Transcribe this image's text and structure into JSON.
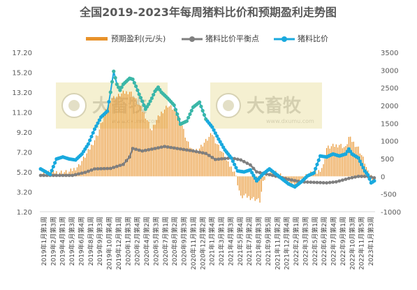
{
  "chart_data": {
    "type": "bar",
    "title": "全国2019-2023年每周猪料比价和预期盈利走势图",
    "legend": [
      "预期盈利(元/头)",
      "猪料比价平衡点",
      "猪料比价"
    ],
    "legend_placement": "top-center",
    "watermark": "大畜牧 www.dxumu.com",
    "left_axis": {
      "ticks": [
        "17.20",
        "15.20",
        "13.20",
        "11.20",
        "9.20",
        "7.20",
        "5.20",
        "3.20",
        "1.20"
      ],
      "range": [
        1.2,
        17.2
      ]
    },
    "right_axis": {
      "ticks": [
        "3500",
        "3000",
        "2500",
        "2000",
        "1500",
        "1000",
        "500",
        "0",
        "-500",
        "-1000"
      ],
      "range": [
        -1000,
        3500
      ]
    },
    "x_ticks": [
      "2019年1月第1周",
      "2019年2月第3周",
      "2019年4月第1周",
      "2019年5月第3周",
      "2019年6月第4周",
      "2019年8月第1周",
      "2019年9月第3周",
      "2019年10月第4周",
      "2019年12月第1周",
      "2020年1月第3周",
      "2020年2月第4周",
      "2020年4月第2周",
      "2020年5月第3周",
      "2020年7月第1周",
      "2020年8月第2周",
      "2020年9月第3周",
      "2020年11月第1周",
      "2020年12月第2周",
      "2021年1月第4周",
      "2021年3月第1周",
      "2021年4月第3周",
      "2021年5月第4周",
      "2021年7月第2周",
      "2021年8月第3周",
      "2021年9月第5周",
      "2021年11月第2周",
      "2021年12月第4周",
      "2022年2月第1周",
      "2022年3月第3周",
      "2022年5月第1周",
      "2022年6月第2周",
      "2022年7月第4周",
      "2022年9月第1周",
      "2022年10月第3周",
      "2022年11月第5周",
      "2023年1月第3周"
    ],
    "profit_series": {
      "name": "预期盈利(元/头)",
      "axis": "right",
      "points": [
        [
          0,
          80
        ],
        [
          10,
          120
        ],
        [
          18,
          120
        ],
        [
          24,
          300
        ],
        [
          30,
          700
        ],
        [
          36,
          1200
        ],
        [
          40,
          1700
        ],
        [
          44,
          2200
        ],
        [
          48,
          2250
        ],
        [
          52,
          2350
        ],
        [
          56,
          2400
        ],
        [
          58,
          2300
        ],
        [
          62,
          2000
        ],
        [
          66,
          1700
        ],
        [
          70,
          1300
        ],
        [
          72,
          1500
        ],
        [
          76,
          1800
        ],
        [
          80,
          2000
        ],
        [
          84,
          1900
        ],
        [
          88,
          1600
        ],
        [
          92,
          1000
        ],
        [
          96,
          700
        ],
        [
          100,
          800
        ],
        [
          104,
          1000
        ],
        [
          108,
          1200
        ],
        [
          110,
          1000
        ],
        [
          114,
          700
        ],
        [
          118,
          350
        ],
        [
          122,
          150
        ],
        [
          124,
          -200
        ],
        [
          126,
          -600
        ],
        [
          128,
          -550
        ],
        [
          132,
          -600
        ],
        [
          136,
          -650
        ],
        [
          138,
          -700
        ],
        [
          140,
          -200
        ],
        [
          142,
          50
        ],
        [
          146,
          150
        ],
        [
          150,
          50
        ],
        [
          154,
          -100
        ],
        [
          158,
          -250
        ],
        [
          162,
          -200
        ],
        [
          166,
          0
        ],
        [
          170,
          80
        ],
        [
          174,
          100
        ],
        [
          178,
          300
        ],
        [
          180,
          800
        ],
        [
          184,
          850
        ],
        [
          188,
          900
        ],
        [
          192,
          800
        ],
        [
          194,
          1100
        ],
        [
          196,
          1000
        ],
        [
          200,
          800
        ],
        [
          204,
          400
        ],
        [
          206,
          100
        ],
        [
          210,
          -80
        ]
      ]
    },
    "breakeven_series": {
      "name": "猪料比价平衡点",
      "axis": "left",
      "points": [
        [
          0,
          4.85
        ],
        [
          20,
          4.85
        ],
        [
          28,
          5.15
        ],
        [
          34,
          5.5
        ],
        [
          44,
          5.55
        ],
        [
          52,
          5.95
        ],
        [
          56,
          6.7
        ],
        [
          58,
          7.55
        ],
        [
          64,
          7.3
        ],
        [
          72,
          7.55
        ],
        [
          78,
          7.75
        ],
        [
          82,
          7.65
        ],
        [
          96,
          7.3
        ],
        [
          104,
          7.05
        ],
        [
          110,
          6.45
        ],
        [
          120,
          6.6
        ],
        [
          126,
          6.4
        ],
        [
          132,
          5.9
        ],
        [
          136,
          5.2
        ],
        [
          146,
          4.85
        ],
        [
          156,
          4.45
        ],
        [
          164,
          4.2
        ],
        [
          172,
          4.15
        ],
        [
          180,
          4.1
        ],
        [
          186,
          4.2
        ],
        [
          194,
          4.55
        ],
        [
          200,
          4.75
        ],
        [
          206,
          4.75
        ],
        [
          210,
          4.6
        ]
      ]
    },
    "ratio_series": {
      "name": "猪料比价",
      "axis": "left",
      "points": [
        [
          0,
          5.5
        ],
        [
          6,
          4.95
        ],
        [
          10,
          6.5
        ],
        [
          14,
          6.7
        ],
        [
          18,
          6.5
        ],
        [
          22,
          6.4
        ],
        [
          26,
          7.0
        ],
        [
          30,
          8.0
        ],
        [
          34,
          9.5
        ],
        [
          38,
          10.7
        ],
        [
          42,
          11.3
        ],
        [
          44,
          13.2
        ],
        [
          46,
          15.3
        ],
        [
          48,
          14.0
        ],
        [
          50,
          13.4
        ],
        [
          52,
          14.0
        ],
        [
          56,
          14.6
        ],
        [
          58,
          14.5
        ],
        [
          60,
          13.8
        ],
        [
          62,
          13.0
        ],
        [
          64,
          12.3
        ],
        [
          66,
          11.5
        ],
        [
          68,
          12.0
        ],
        [
          70,
          12.6
        ],
        [
          72,
          13.3
        ],
        [
          74,
          13.7
        ],
        [
          76,
          13.2
        ],
        [
          80,
          12.6
        ],
        [
          84,
          11.9
        ],
        [
          86,
          11.0
        ],
        [
          88,
          10.0
        ],
        [
          92,
          10.3
        ],
        [
          96,
          11.7
        ],
        [
          100,
          12.2
        ],
        [
          104,
          10.5
        ],
        [
          108,
          9.7
        ],
        [
          112,
          8.5
        ],
        [
          116,
          7.4
        ],
        [
          120,
          6.6
        ],
        [
          124,
          5.3
        ],
        [
          128,
          5.2
        ],
        [
          132,
          5.4
        ],
        [
          136,
          4.3
        ],
        [
          140,
          5.0
        ],
        [
          144,
          5.5
        ],
        [
          148,
          5.0
        ],
        [
          152,
          4.5
        ],
        [
          156,
          4.0
        ],
        [
          160,
          3.7
        ],
        [
          164,
          4.2
        ],
        [
          168,
          4.8
        ],
        [
          172,
          5.1
        ],
        [
          176,
          6.8
        ],
        [
          180,
          6.7
        ],
        [
          184,
          7.0
        ],
        [
          188,
          6.8
        ],
        [
          192,
          7.0
        ],
        [
          194,
          7.5
        ],
        [
          196,
          7.0
        ],
        [
          200,
          6.6
        ],
        [
          204,
          5.3
        ],
        [
          206,
          4.9
        ],
        [
          208,
          4.1
        ],
        [
          210,
          4.3
        ]
      ]
    },
    "colors": {
      "profit": "#E8922A",
      "breakeven": "#7F7F7F",
      "ratio": "#19A9DE",
      "ratio_fill": "#3BB7A7",
      "title": "#595959",
      "tick": "#595959",
      "watermark_box": "#F2EBC1"
    }
  }
}
